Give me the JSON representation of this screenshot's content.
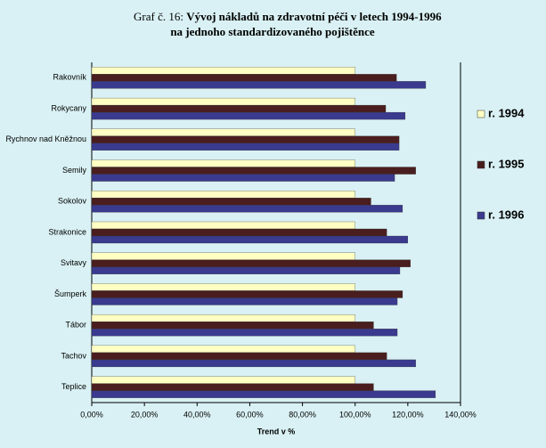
{
  "chart_data": {
    "type": "bar",
    "orientation": "horizontal",
    "title_label": "Graf č. 16:",
    "title": "Vývoj nákladů na zdravotní péči v letech 1994-1996",
    "subtitle": "na jednoho standardizovaného pojištěnce",
    "x_label": "Trend v %",
    "categories": [
      "Rakovník",
      "Rokycany",
      "Rychnov nad Kněžnou",
      "Semily",
      "Sokolov",
      "Strakonice",
      "Svitavy",
      "Šumperk",
      "Tábor",
      "Tachov",
      "Teplice"
    ],
    "series": [
      {
        "name": "r. 1994",
        "color": "#ffffc4",
        "values": [
          100,
          100,
          100,
          100,
          100,
          100,
          100,
          100,
          100,
          100,
          100
        ]
      },
      {
        "name": "r. 1995",
        "color": "#4a1e1e",
        "values": [
          115.7,
          111.6,
          116.7,
          123,
          106,
          112,
          121,
          118,
          107,
          112,
          107
        ]
      },
      {
        "name": "r. 1996",
        "color": "#3a3a8e",
        "values": [
          126.8,
          119,
          116.7,
          115,
          118,
          120,
          117,
          116,
          116,
          123,
          130.5
        ]
      }
    ],
    "xlim": [
      0,
      140
    ],
    "xticks": [
      {
        "value": 0,
        "label": "0,00%"
      },
      {
        "value": 20,
        "label": "20,00%"
      },
      {
        "value": 40,
        "label": "40,00%"
      },
      {
        "value": 60,
        "label": "60,00%"
      },
      {
        "value": 80,
        "label": "80,00%"
      },
      {
        "value": 100,
        "label": "100,00%"
      },
      {
        "value": 120,
        "label": "120,00%"
      },
      {
        "value": 140,
        "label": "140,00%"
      }
    ],
    "grid": false,
    "legend": "right"
  }
}
